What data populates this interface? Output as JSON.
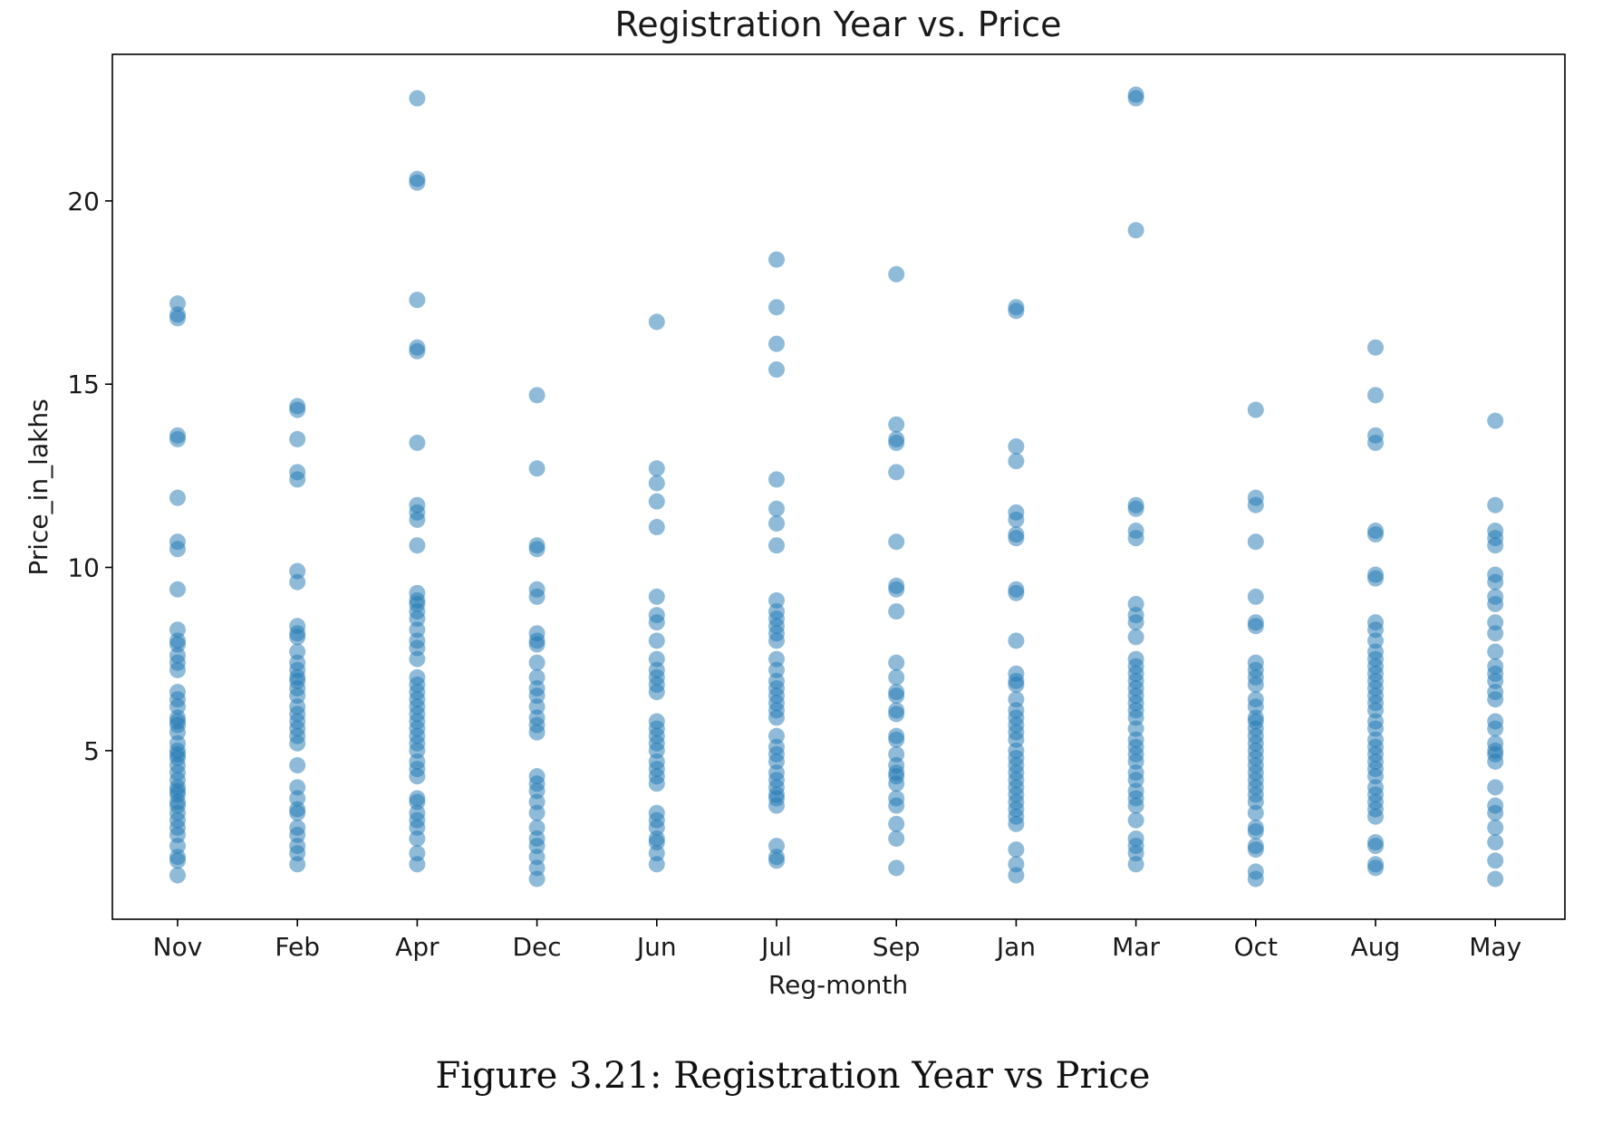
{
  "chart_data": {
    "type": "scatter",
    "title": "Registration Year vs. Price",
    "xlabel": "Reg-month",
    "ylabel": "Price_in_lakhs",
    "ylim": [
      0.4,
      24
    ],
    "yticks": [
      5,
      10,
      15,
      20
    ],
    "grid": false,
    "legend": "none",
    "marker_color": "#1f77b4",
    "marker_alpha": 0.5,
    "categories": [
      "Nov",
      "Feb",
      "Apr",
      "Dec",
      "Jun",
      "Jul",
      "Sep",
      "Jan",
      "Mar",
      "Oct",
      "Aug",
      "May"
    ],
    "series": [
      {
        "points": [
          {
            "x": "Nov",
            "y": [
              17.2,
              16.9,
              16.8,
              13.6,
              13.5,
              11.9,
              10.7,
              10.5,
              9.4,
              8.3,
              8.0,
              7.9,
              7.6,
              7.4,
              7.2,
              6.6,
              6.4,
              6.2,
              5.9,
              5.8,
              5.7,
              5.5,
              5.2,
              5.0,
              4.9,
              4.8,
              4.6,
              4.4,
              4.2,
              4.0,
              3.9,
              3.8,
              3.6,
              3.5,
              3.3,
              3.1,
              2.9,
              2.7,
              2.4,
              2.1,
              2.0,
              1.6
            ]
          },
          {
            "x": "Feb",
            "y": [
              14.4,
              14.3,
              13.5,
              12.6,
              12.4,
              9.9,
              9.6,
              8.4,
              8.2,
              8.1,
              7.7,
              7.4,
              7.2,
              7.0,
              6.9,
              6.7,
              6.5,
              6.2,
              6.0,
              5.8,
              5.6,
              5.4,
              5.2,
              4.6,
              4.0,
              3.7,
              3.4,
              3.3,
              2.9,
              2.7,
              2.4,
              2.2,
              1.9
            ]
          },
          {
            "x": "Apr",
            "y": [
              22.8,
              20.6,
              20.5,
              17.3,
              16.0,
              15.9,
              13.4,
              11.7,
              11.5,
              11.3,
              10.6,
              9.3,
              9.1,
              9.0,
              8.8,
              8.6,
              8.3,
              8.0,
              7.8,
              7.5,
              7.0,
              6.8,
              6.6,
              6.4,
              6.2,
              6.0,
              5.8,
              5.6,
              5.4,
              5.2,
              5.0,
              4.7,
              4.5,
              4.3,
              3.7,
              3.6,
              3.3,
              3.1,
              2.9,
              2.6,
              2.2,
              1.9
            ]
          },
          {
            "x": "Dec",
            "y": [
              14.7,
              12.7,
              10.6,
              10.5,
              9.4,
              9.2,
              8.2,
              8.0,
              7.9,
              7.4,
              7.0,
              6.7,
              6.5,
              6.2,
              5.9,
              5.7,
              5.5,
              4.3,
              4.1,
              3.9,
              3.6,
              3.3,
              2.9,
              2.6,
              2.4,
              2.1,
              1.8,
              1.5
            ]
          },
          {
            "x": "Jun",
            "y": [
              16.7,
              12.7,
              12.3,
              11.8,
              11.1,
              9.2,
              8.7,
              8.5,
              8.0,
              7.5,
              7.2,
              7.0,
              6.8,
              6.6,
              5.8,
              5.6,
              5.4,
              5.2,
              5.0,
              4.7,
              4.5,
              4.3,
              4.1,
              3.3,
              3.1,
              2.9,
              2.6,
              2.5,
              2.2,
              1.9
            ]
          },
          {
            "x": "Jul",
            "y": [
              18.4,
              17.1,
              16.1,
              15.4,
              12.4,
              11.6,
              11.2,
              10.6,
              9.1,
              8.8,
              8.6,
              8.4,
              8.2,
              8.0,
              7.5,
              7.2,
              6.9,
              6.7,
              6.5,
              6.3,
              6.1,
              5.9,
              5.4,
              5.1,
              4.9,
              4.7,
              4.4,
              4.2,
              4.0,
              3.8,
              3.7,
              3.5,
              2.4,
              2.1,
              2.0
            ]
          },
          {
            "x": "Sep",
            "y": [
              18.0,
              13.9,
              13.5,
              13.4,
              12.6,
              10.7,
              9.5,
              9.4,
              8.8,
              7.4,
              7.0,
              6.6,
              6.5,
              6.1,
              6.0,
              5.4,
              5.3,
              4.9,
              4.6,
              4.4,
              4.3,
              4.1,
              3.7,
              3.5,
              3.0,
              2.6,
              1.8
            ]
          },
          {
            "x": "Jan",
            "y": [
              17.1,
              17.0,
              13.3,
              12.9,
              11.5,
              11.3,
              10.9,
              10.8,
              9.4,
              9.3,
              8.0,
              7.1,
              6.9,
              6.8,
              6.4,
              6.1,
              5.9,
              5.7,
              5.5,
              5.3,
              5.0,
              4.8,
              4.6,
              4.4,
              4.2,
              4.0,
              3.8,
              3.6,
              3.4,
              3.2,
              3.0,
              2.3,
              1.9,
              1.6
            ]
          },
          {
            "x": "Mar",
            "y": [
              22.9,
              22.8,
              19.2,
              11.7,
              11.6,
              11.0,
              10.8,
              9.0,
              8.7,
              8.5,
              8.1,
              7.5,
              7.3,
              7.1,
              6.9,
              6.7,
              6.5,
              6.3,
              6.1,
              5.9,
              5.6,
              5.3,
              5.1,
              4.9,
              4.7,
              4.4,
              4.2,
              3.9,
              3.7,
              3.5,
              3.1,
              2.6,
              2.4,
              2.2,
              1.9
            ]
          },
          {
            "x": "Oct",
            "y": [
              14.3,
              11.9,
              11.7,
              10.7,
              9.2,
              8.5,
              8.4,
              7.4,
              7.2,
              7.0,
              6.8,
              6.4,
              6.2,
              5.9,
              5.8,
              5.6,
              5.4,
              5.2,
              5.0,
              4.8,
              4.6,
              4.4,
              4.2,
              4.0,
              3.8,
              3.6,
              3.3,
              2.9,
              2.8,
              2.4,
              2.3,
              1.7,
              1.5
            ]
          },
          {
            "x": "Aug",
            "y": [
              16.0,
              14.7,
              13.6,
              13.4,
              11.0,
              10.9,
              9.8,
              9.7,
              8.5,
              8.3,
              8.0,
              7.7,
              7.5,
              7.3,
              7.1,
              6.9,
              6.7,
              6.5,
              6.3,
              6.1,
              5.8,
              5.6,
              5.3,
              5.1,
              4.9,
              4.7,
              4.5,
              4.3,
              4.0,
              3.8,
              3.6,
              3.4,
              3.2,
              2.5,
              2.4,
              1.9,
              1.8
            ]
          },
          {
            "x": "May",
            "y": [
              14.0,
              11.7,
              11.0,
              10.8,
              10.6,
              9.8,
              9.6,
              9.2,
              9.0,
              8.5,
              8.2,
              7.7,
              7.3,
              7.1,
              6.9,
              6.6,
              6.4,
              5.8,
              5.6,
              5.2,
              5.0,
              4.9,
              4.7,
              4.0,
              3.5,
              3.3,
              2.9,
              2.5,
              2.0,
              1.5
            ]
          }
        ]
      }
    ]
  },
  "caption": "Figure 3.21: Registration Year vs Price"
}
